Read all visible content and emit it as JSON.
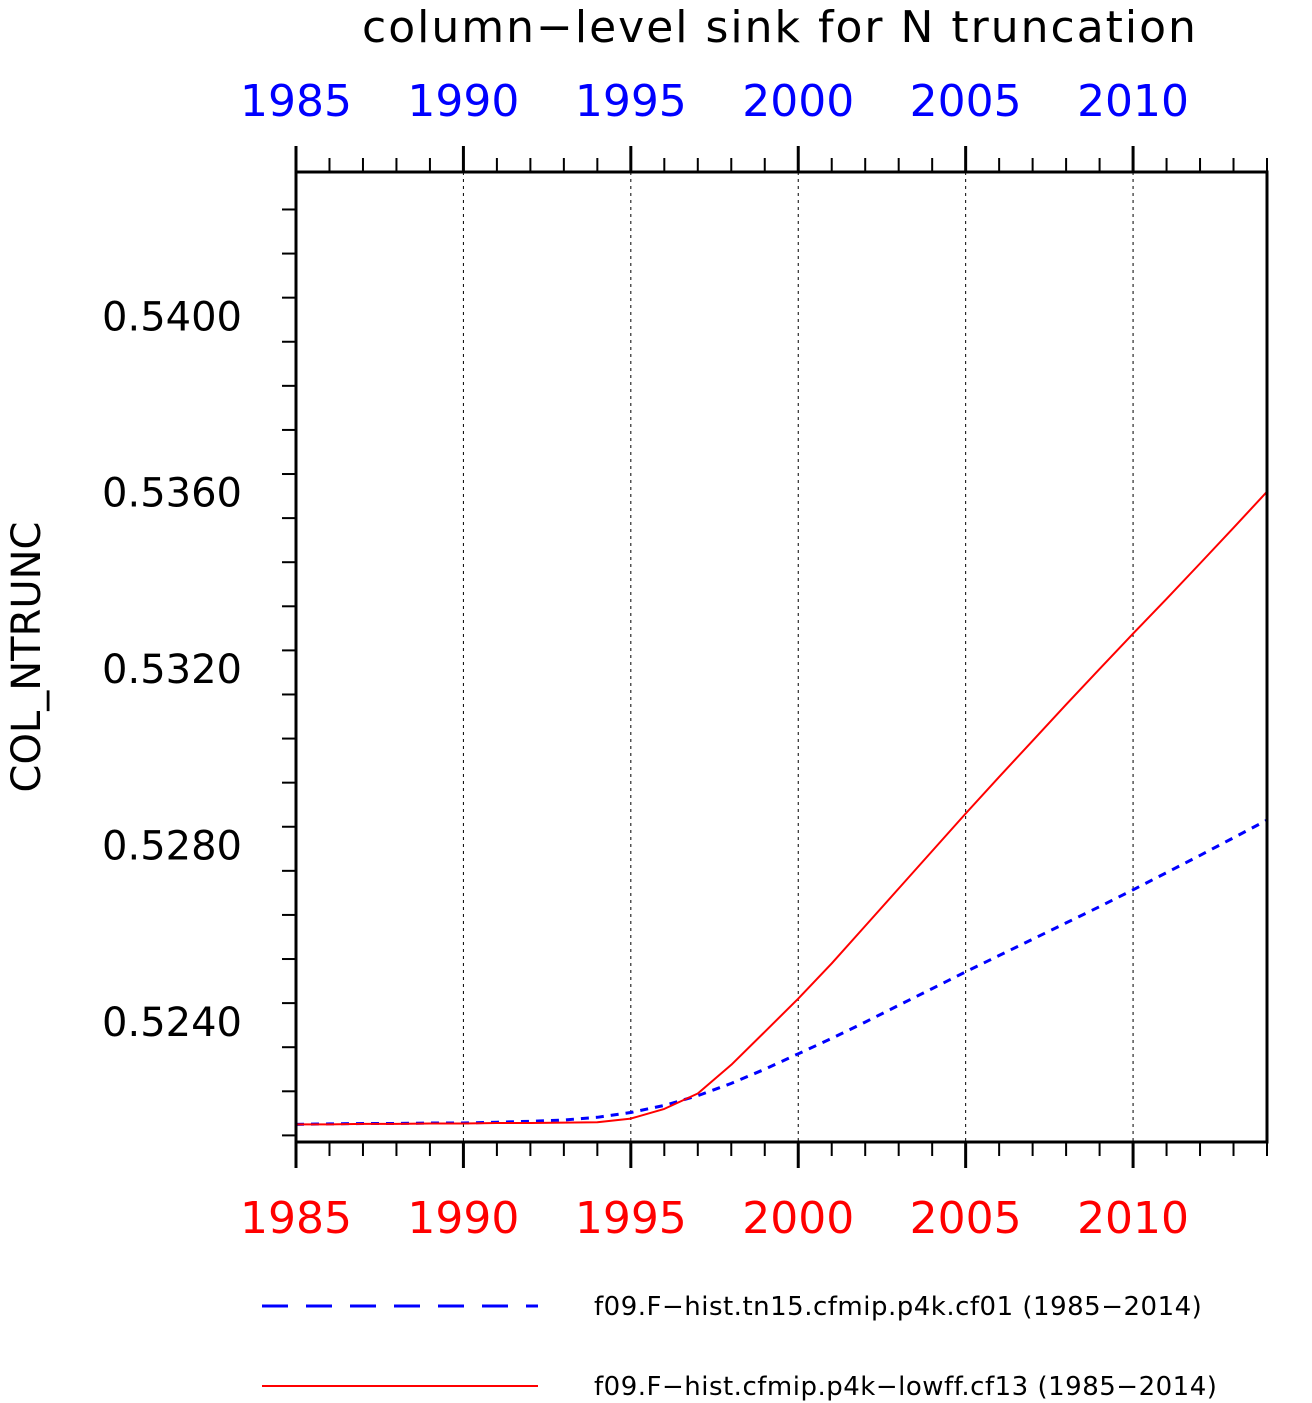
{
  "chart_data": {
    "type": "line",
    "title": "column−level sink for N truncation",
    "ylabel": "COL_NTRUNC",
    "xlabel": "",
    "xlim": [
      1985,
      2014
    ],
    "ylim": [
      0.52125,
      0.54325
    ],
    "bottom_axis": {
      "tick_labels": [
        "1985",
        "1990",
        "1995",
        "2000",
        "2005",
        "2010"
      ],
      "color": "#ff0000"
    },
    "top_axis": {
      "tick_labels": [
        "1985",
        "1990",
        "1995",
        "2000",
        "2005",
        "2010"
      ],
      "color": "#0000ff"
    },
    "y_tick_labels": [
      "0.5240",
      "0.5280",
      "0.5320",
      "0.5360",
      "0.5400"
    ],
    "grid": "vertical dotted lines at major x ticks",
    "legend_position": "bottom",
    "x": [
      1985,
      1986,
      1987,
      1988,
      1989,
      1990,
      1991,
      1992,
      1993,
      1994,
      1995,
      1996,
      1997,
      1998,
      1999,
      2000,
      2001,
      2002,
      2003,
      2004,
      2005,
      2006,
      2007,
      2008,
      2009,
      2010,
      2011,
      2012,
      2013,
      2014
    ],
    "series": [
      {
        "name": "f09.F−hist.tn15.cfmip.p4k.cf01 (1985−2014)",
        "color": "#0000ff",
        "style": "dashed",
        "values": [
          0.52165,
          0.52166,
          0.52167,
          0.52167,
          0.52168,
          0.52168,
          0.5217,
          0.52172,
          0.52175,
          0.52181,
          0.52192,
          0.52208,
          0.5223,
          0.52258,
          0.5229,
          0.52325,
          0.5236,
          0.52397,
          0.52435,
          0.52473,
          0.52511,
          0.52548,
          0.52585,
          0.52622,
          0.52659,
          0.52697,
          0.52736,
          0.52775,
          0.52815,
          0.52855
        ]
      },
      {
        "name": "f09.F−hist.cfmip.p4k−lowff.cf13 (1985−2014)",
        "color": "#ff0000",
        "style": "solid",
        "values": [
          0.52165,
          0.52165,
          0.52166,
          0.52166,
          0.52167,
          0.52167,
          0.52168,
          0.52168,
          0.52169,
          0.5217,
          0.52178,
          0.522,
          0.52235,
          0.523,
          0.52375,
          0.5245,
          0.5253,
          0.52615,
          0.527,
          0.52785,
          0.5287,
          0.52953,
          0.53035,
          0.53117,
          0.53198,
          0.53278,
          0.53357,
          0.53437,
          0.53518,
          0.536
        ]
      }
    ]
  }
}
